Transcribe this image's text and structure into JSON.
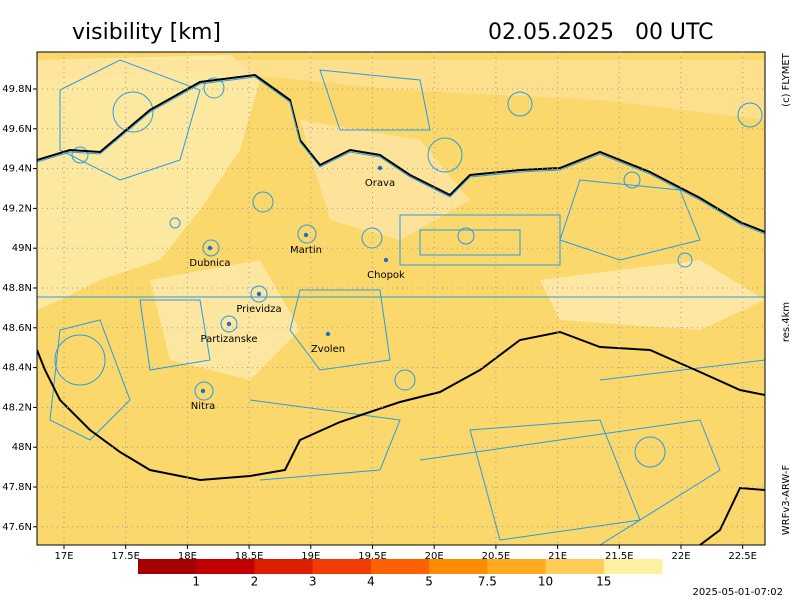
{
  "header": {
    "title": "visibility [km]",
    "date": "02.05.2025   00 UTC"
  },
  "side_labels": {
    "copyright": "(c) FLYMET",
    "resolution": "res.4km",
    "model": "WRFv3-ARW-F"
  },
  "map": {
    "lat_ticks": [
      "49.8N",
      "49.6N",
      "49.4N",
      "49.2N",
      "49N",
      "48.8N",
      "48.6N",
      "48.4N",
      "48.2N",
      "48N",
      "47.8N",
      "47.6N"
    ],
    "lon_ticks": [
      "17E",
      "17.5E",
      "18E",
      "18.5E",
      "19E",
      "19.5E",
      "20E",
      "20.5E",
      "21E",
      "21.5E",
      "22E",
      "22.5E"
    ],
    "cities": [
      {
        "label": "Orava"
      },
      {
        "label": "Martin"
      },
      {
        "label": "Dubnica"
      },
      {
        "label": "Chopok"
      },
      {
        "label": "Prievidza"
      },
      {
        "label": "Partizanske"
      },
      {
        "label": "Zvolen"
      },
      {
        "label": "Nitra"
      }
    ]
  },
  "colorbar": {
    "labels": [
      "1",
      "2",
      "3",
      "4",
      "5",
      "7.5",
      "10",
      "15"
    ]
  },
  "footer": {
    "timestamp": "2025-05-01-07:02"
  }
}
